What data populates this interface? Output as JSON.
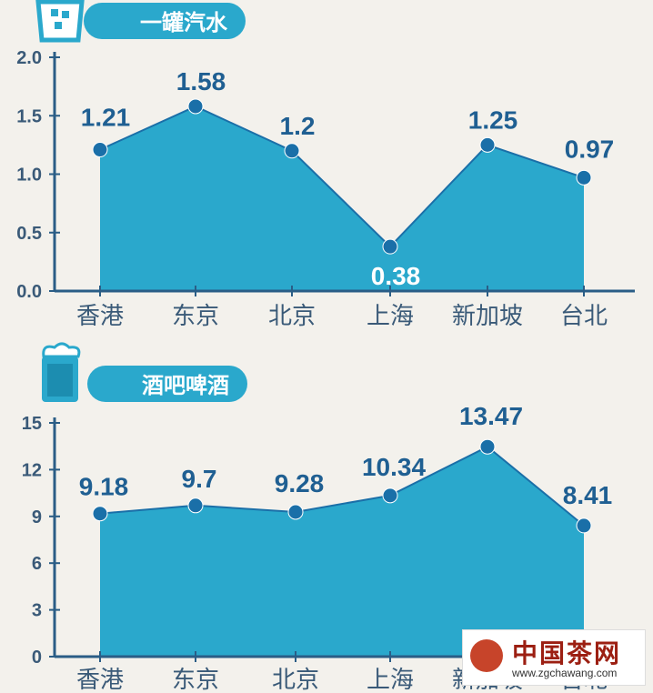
{
  "chart_data": [
    {
      "type": "area",
      "title": "一罐汽水",
      "categories": [
        "香港",
        "东京",
        "北京",
        "上海",
        "新加坡",
        "台北"
      ],
      "values": [
        1.21,
        1.58,
        1.2,
        0.38,
        1.25,
        0.97
      ],
      "value_labels": [
        "1.21",
        "1.58",
        "1.2",
        "0.38",
        "1.25",
        "0.97"
      ],
      "yticks": [
        "2.0",
        "1.5",
        "1.0",
        "0.5",
        "0.0"
      ],
      "ylim": [
        0,
        2
      ],
      "icon": "soda-can-icon"
    },
    {
      "type": "area",
      "title": "酒吧啤酒",
      "categories": [
        "香港",
        "东京",
        "北京",
        "上海",
        "新加坡",
        "台北"
      ],
      "values": [
        9.18,
        9.7,
        9.28,
        10.34,
        13.47,
        8.41
      ],
      "value_labels": [
        "9.18",
        "9.7",
        "9.28",
        "10.34",
        "13.47",
        "8.41"
      ],
      "yticks": [
        "15",
        "12",
        "9",
        "6",
        "3",
        "0"
      ],
      "ylim": [
        0,
        15
      ],
      "icon": "beer-mug-icon"
    }
  ],
  "colors": {
    "fill": "#2aa8cc",
    "line": "#1a6fa8",
    "axis": "#2a5d86",
    "tick_label": "#3a5a78",
    "title_bg": "#2aa8cc",
    "title_text": "#ffffff",
    "value_label": "#1f5f92"
  },
  "watermark": {
    "title": "中国茶网",
    "url": "www.zgchawang.com"
  }
}
